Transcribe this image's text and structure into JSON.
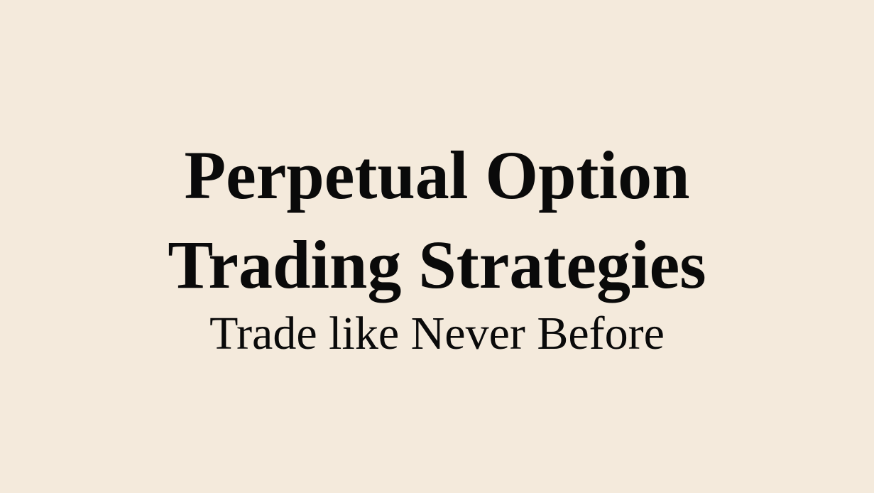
{
  "slide": {
    "title_lines": [
      "Perpetual Option",
      "Trading Strategies"
    ],
    "subtitle": "Trade like Never Before"
  },
  "colors": {
    "background": "#f4eadc",
    "text": "#0a0a0a"
  }
}
